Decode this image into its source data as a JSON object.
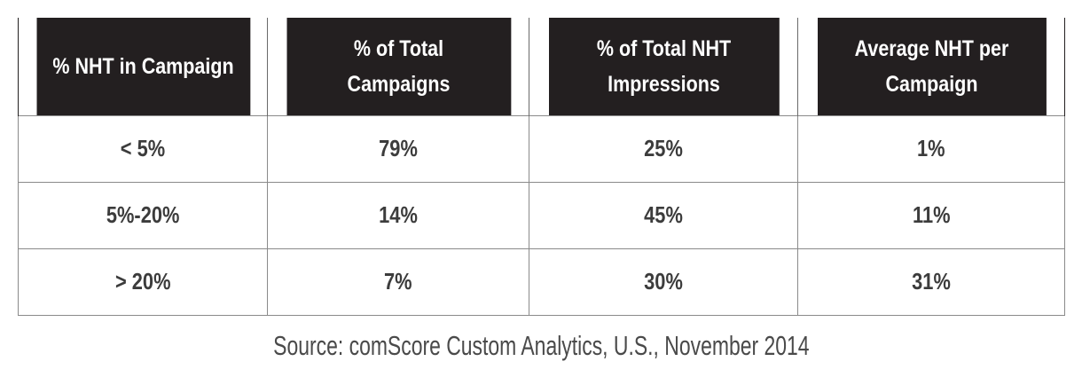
{
  "chart_data": {
    "type": "table",
    "columns": [
      "% NHT in Campaign",
      "% of Total Campaigns",
      "% of Total NHT Impressions",
      "Average NHT per Campaign"
    ],
    "rows": [
      [
        "< 5%",
        "79%",
        "25%",
        "1%"
      ],
      [
        "5%-20%",
        "14%",
        "45%",
        "11%"
      ],
      [
        "> 20%",
        "7%",
        "30%",
        "31%"
      ]
    ],
    "source": "Source: comScore Custom Analytics, U.S., November 2014"
  },
  "colors": {
    "header_bg": "#231f20",
    "header_text": "#ffffff",
    "cell_text": "#3c3c3c",
    "border": "#8a8a8a"
  }
}
